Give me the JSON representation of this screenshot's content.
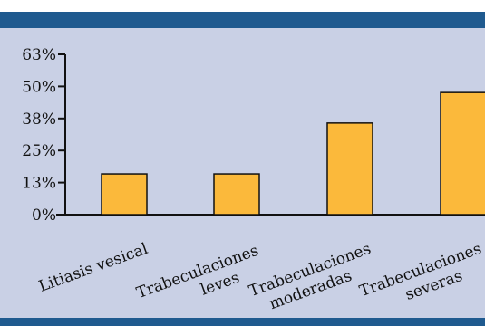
{
  "colors": {
    "background": "#c9d0e5",
    "header_bar": "#1f5a8f",
    "bar_fill": "#fbb93b",
    "bar_stroke": "#111111",
    "axis": "#111111"
  },
  "chart_data": {
    "type": "bar",
    "title": "",
    "xlabel": "",
    "ylabel": "",
    "categories": [
      [
        "Litiasis vesical"
      ],
      [
        "Trabeculaciones",
        "leves"
      ],
      [
        "Trabeculaciones",
        "moderadas"
      ],
      [
        "Trabeculaciones",
        "severas"
      ]
    ],
    "values": [
      16,
      16,
      36,
      48
    ],
    "ylim": [
      0,
      63
    ],
    "y_ticks": [
      {
        "value": 0,
        "label": "0%"
      },
      {
        "value": 12.6,
        "label": "13%"
      },
      {
        "value": 25.2,
        "label": "25%"
      },
      {
        "value": 37.8,
        "label": "38%"
      },
      {
        "value": 50.4,
        "label": "50%"
      },
      {
        "value": 63,
        "label": "63%"
      }
    ],
    "grid": false,
    "legend": "none"
  }
}
